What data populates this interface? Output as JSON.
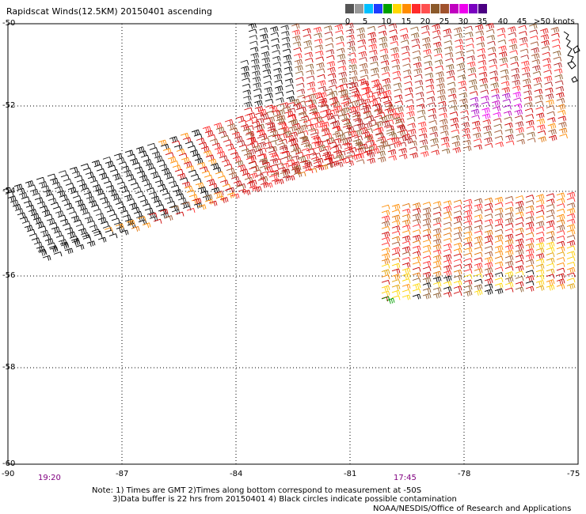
{
  "title": "Rapidscat Winds(12.5KM) 20150401 ascending",
  "legend": {
    "labels": [
      "0",
      "5",
      "10",
      "15",
      "20",
      "25",
      "30",
      "35",
      "40",
      "45",
      ">50 knots"
    ],
    "colors": [
      "#555555",
      "#999999",
      "#00bfff",
      "#1e3cff",
      "#00a000",
      "#ffd700",
      "#ff8c00",
      "#ff2a2a",
      "#ff4f4f",
      "#8b5a2b",
      "#a0522d",
      "#c000c0",
      "#ee00ee",
      "#7a00c0",
      "#4b0082"
    ]
  },
  "axes": {
    "lat_labels": [
      "-50",
      "-52",
      "-54",
      "-56",
      "-58",
      "-60"
    ],
    "lon_labels": [
      "-90",
      "-87",
      "-84",
      "-81",
      "-78",
      "-75"
    ]
  },
  "times": [
    "19:20",
    "17:45"
  ],
  "notes": [
    "Note: 1) Times are GMT 2)Times along bottom correspond to measurement at -50S",
    "3)Data buffer is 22 hrs from 20150401 4) Black circles indicate possible contamination"
  ],
  "credit": "NOAA/NESDIS/Office of Research and Applications"
}
